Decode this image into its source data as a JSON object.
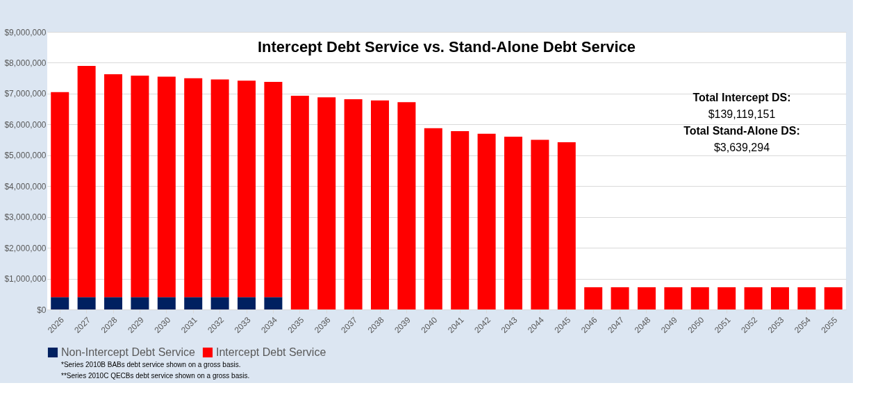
{
  "chart_data": {
    "type": "bar",
    "title": "Intercept Debt Service vs. Stand-Alone Debt Service",
    "categories": [
      "2026",
      "2027",
      "2028",
      "2029",
      "2030",
      "2031",
      "2032",
      "2033",
      "2034",
      "2035",
      "2036",
      "2037",
      "2038",
      "2039",
      "2040",
      "2041",
      "2042",
      "2043",
      "2044",
      "2045",
      "2046",
      "2047",
      "2048",
      "2049",
      "2050",
      "2051",
      "2052",
      "2053",
      "2054",
      "2055"
    ],
    "stacked": true,
    "series": [
      {
        "name": "Non-Intercept Debt Service",
        "color": "#002060",
        "values": [
          400000,
          400000,
          400000,
          400000,
          400000,
          400000,
          400000,
          400000,
          400000,
          null,
          null,
          null,
          null,
          null,
          null,
          null,
          null,
          null,
          null,
          null,
          null,
          null,
          null,
          null,
          null,
          null,
          null,
          null,
          null,
          null
        ]
      },
      {
        "name": "Intercept Debt Service",
        "color": "#ff0000",
        "values": [
          6650000,
          7500000,
          7230000,
          7180000,
          7150000,
          7100000,
          7060000,
          7020000,
          6980000,
          6930000,
          6880000,
          6820000,
          6780000,
          6720000,
          5880000,
          5780000,
          5700000,
          5600000,
          5500000,
          5420000,
          720000,
          720000,
          720000,
          720000,
          720000,
          720000,
          720000,
          720000,
          720000,
          720000
        ]
      }
    ],
    "ylim": [
      0,
      9000000
    ],
    "yticks": [
      {
        "value": 0,
        "label": "$0"
      },
      {
        "value": 1000000,
        "label": "$1,000,000"
      },
      {
        "value": 2000000,
        "label": "$2,000,000"
      },
      {
        "value": 3000000,
        "label": "$3,000,000"
      },
      {
        "value": 4000000,
        "label": "$4,000,000"
      },
      {
        "value": 5000000,
        "label": "$5,000,000"
      },
      {
        "value": 6000000,
        "label": "$6,000,000"
      },
      {
        "value": 7000000,
        "label": "$7,000,000"
      },
      {
        "value": 8000000,
        "label": "$8,000,000"
      },
      {
        "value": 9000000,
        "label": "$9,000,000"
      }
    ],
    "grid": "y",
    "legend": "bottom",
    "annotations": [
      "Total Intercept DS:",
      "$139,119,151",
      "Total Stand-Alone DS:",
      "$3,639,294",
      "*Series 2010B BABs debt service shown on a gross basis.",
      "**Series 2010C QECBs debt service shown on a gross basis."
    ]
  }
}
